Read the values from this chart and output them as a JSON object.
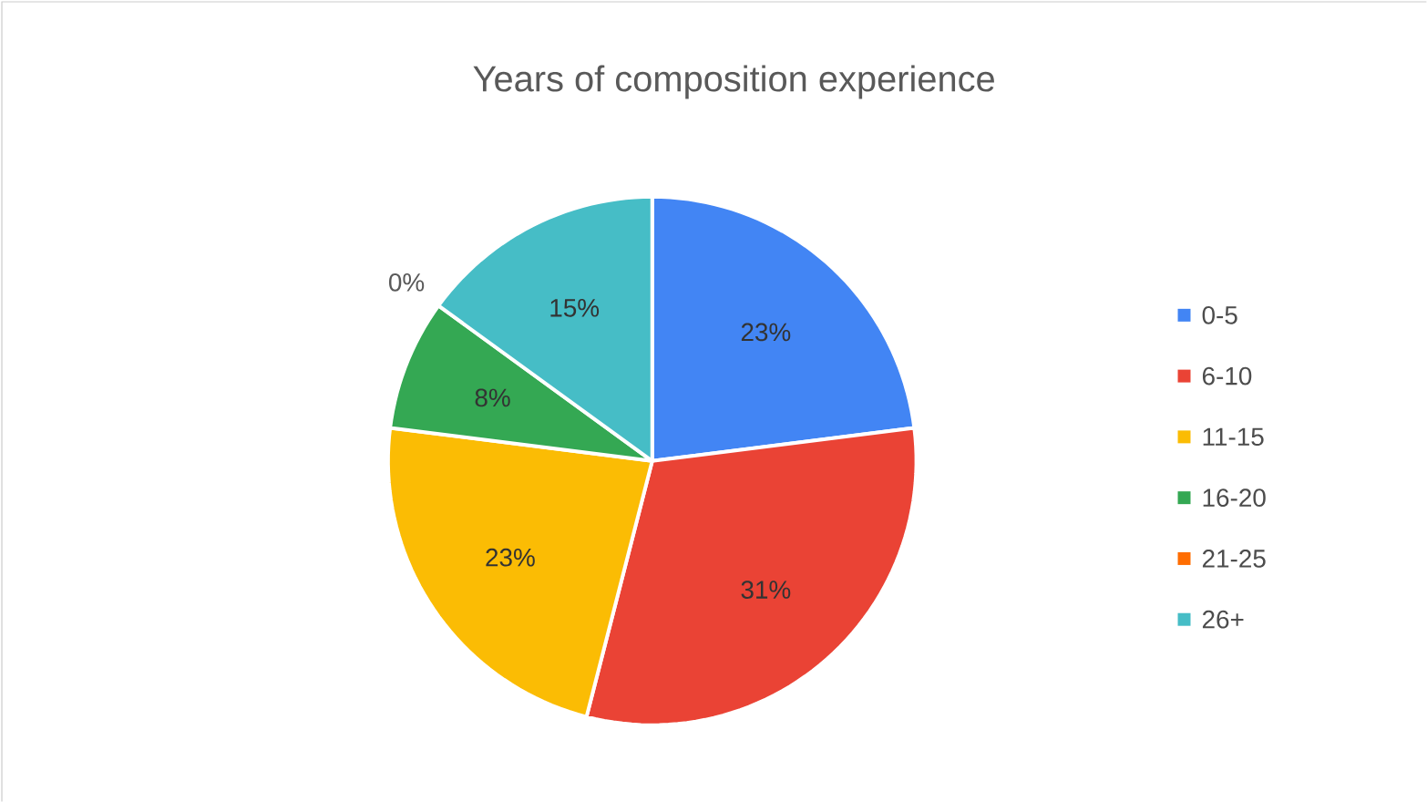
{
  "chart_data": {
    "type": "pie",
    "title": "Years of composition experience",
    "categories": [
      "0-5",
      "6-10",
      "11-15",
      "16-20",
      "21-25",
      "26+"
    ],
    "values": [
      23,
      31,
      23,
      8,
      0,
      15
    ],
    "colors": [
      "#4285f4",
      "#ea4335",
      "#fbbc04",
      "#34a853",
      "#ff6d01",
      "#46bdc6"
    ],
    "value_labels": [
      "23%",
      "31%",
      "23%",
      "8%",
      "0%",
      "15%"
    ],
    "legend": "right"
  }
}
